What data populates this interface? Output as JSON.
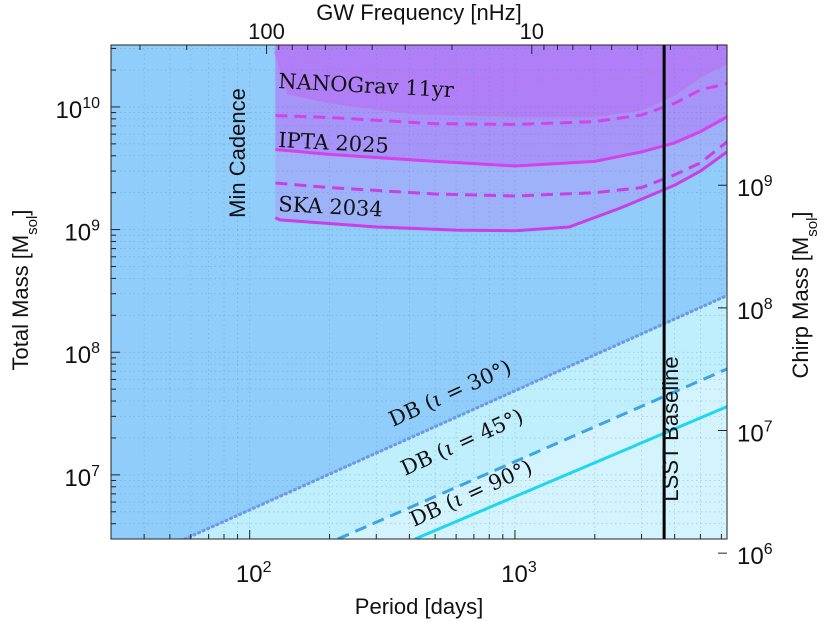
{
  "chart_data": {
    "type": "area",
    "title": "",
    "xlabel": "Period [days]",
    "ylabel": "Total Mass [M",
    "ylabel_sub": "sol",
    "ylabel_end": "]",
    "ylabel_right": "Chirp Mass [M",
    "ylabel_right_sub": "sol",
    "ylabel_right_end": "]",
    "xlabel_top": "GW Frequency [nHz]",
    "xscale": "log",
    "yscale": "log",
    "xlim": [
      30,
      6300
    ],
    "ylim": [
      3000000,
      32000000000
    ],
    "grid": true,
    "x_ticks": [
      {
        "value": 100,
        "base": "10",
        "exp": "2"
      },
      {
        "value": 1000,
        "base": "10",
        "exp": "3"
      }
    ],
    "y_ticks": [
      {
        "value": 10000000,
        "base": "10",
        "exp": "7"
      },
      {
        "value": 100000000,
        "base": "10",
        "exp": "8"
      },
      {
        "value": 1000000000,
        "base": "10",
        "exp": "9"
      },
      {
        "value": 10000000000,
        "base": "10",
        "exp": "10"
      }
    ],
    "top_ticks": [
      {
        "freq_nhz": 100,
        "label": "100"
      },
      {
        "freq_nhz": 10,
        "label": "10"
      }
    ],
    "right_ticks": [
      {
        "total_mass": 2300000,
        "base": "10",
        "exp": "6"
      },
      {
        "total_mass": 23000000,
        "base": "10",
        "exp": "7"
      },
      {
        "total_mass": 230000000,
        "base": "10",
        "exp": "8"
      },
      {
        "total_mass": 2300000000,
        "base": "10",
        "exp": "9"
      }
    ],
    "vertical_lines": [
      {
        "name": "min-cadence",
        "label": "Min Cadence",
        "x": 125
      },
      {
        "name": "lsst-baseline",
        "label": "LSST Baseline",
        "x": 3650
      }
    ],
    "pta_curves": [
      {
        "name": "NANOGrav 11yr",
        "label": "NANOGrav 11yr",
        "color": "#b47cf0",
        "solid": [
          [
            125,
            28500000000
          ],
          [
            140,
            13000000000
          ],
          [
            200,
            11000000000
          ],
          [
            400,
            9000000000
          ],
          [
            1000,
            8500000000
          ],
          [
            2000,
            8500000000
          ],
          [
            3000,
            9600000000
          ],
          [
            4000,
            12800000000
          ],
          [
            5000,
            17800000000
          ],
          [
            6300,
            23000000000
          ]
        ],
        "dashed": [
          [
            140,
            26000000000
          ],
          [
            200,
            21000000000
          ],
          [
            400,
            18000000000
          ],
          [
            1000,
            16500000000
          ],
          [
            2000,
            16800000000
          ],
          [
            3000,
            17500000000
          ],
          [
            4000,
            22000000000
          ],
          [
            5000,
            27500000000
          ],
          [
            6000,
            31000000000
          ]
        ]
      },
      {
        "name": "IPTA 2025",
        "label": "IPTA 2025",
        "color": "#d442ec",
        "solid": [
          [
            125,
            4500000000
          ],
          [
            200,
            4100000000
          ],
          [
            500,
            3600000000
          ],
          [
            1000,
            3300000000
          ],
          [
            2000,
            3600000000
          ],
          [
            3000,
            4300000000
          ],
          [
            4000,
            5100000000
          ],
          [
            5000,
            6300000000
          ],
          [
            6300,
            8300000000
          ]
        ],
        "dashed": [
          [
            125,
            8500000000
          ],
          [
            200,
            8200000000
          ],
          [
            500,
            7300000000
          ],
          [
            1000,
            7200000000
          ],
          [
            2000,
            7600000000
          ],
          [
            3000,
            8600000000
          ],
          [
            4000,
            10700000000
          ],
          [
            5000,
            13800000000
          ],
          [
            6300,
            15500000000
          ]
        ]
      },
      {
        "name": "SKA 2034",
        "label": "SKA 2034",
        "color": "#c83fe8",
        "solid": [
          [
            125,
            1250000000
          ],
          [
            130,
            1200000000
          ],
          [
            300,
            1050000000
          ],
          [
            600,
            990000000
          ],
          [
            1000,
            980000000
          ],
          [
            1600,
            1050000000
          ],
          [
            2500,
            1500000000
          ],
          [
            4000,
            2300000000
          ],
          [
            5000,
            3000000000
          ],
          [
            6300,
            4300000000
          ]
        ],
        "dashed": [
          [
            125,
            2400000000
          ],
          [
            200,
            2200000000
          ],
          [
            500,
            1950000000
          ],
          [
            1000,
            1880000000
          ],
          [
            2000,
            2000000000
          ],
          [
            3000,
            2200000000
          ],
          [
            4000,
            2800000000
          ],
          [
            5000,
            3500000000
          ],
          [
            6300,
            5200000000
          ]
        ]
      }
    ],
    "db_lines": [
      {
        "name": "db-30",
        "label_pre": "DB (",
        "label_iota": "ι",
        "label_eq": " = ",
        "label_deg": "30°",
        "label_post": ")",
        "style": "dotted",
        "color": "#6a9ae8",
        "start": [
          57,
          3000000
        ],
        "end": [
          6300,
          290000000
        ]
      },
      {
        "name": "db-45",
        "label_pre": "DB (",
        "label_iota": "ι",
        "label_eq": " = ",
        "label_deg": "45°",
        "label_post": ")",
        "style": "dashed",
        "color": "#3aa4e4",
        "start": [
          215,
          3000000
        ],
        "end": [
          6300,
          73000000
        ]
      },
      {
        "name": "db-90",
        "label_pre": "DB (",
        "label_iota": "ι",
        "label_eq": " = ",
        "label_deg": "90°",
        "label_post": ")",
        "style": "solid",
        "color": "#1fd6ee",
        "start": [
          420,
          3000000
        ],
        "end": [
          6300,
          36000000
        ]
      }
    ],
    "colors": {
      "background": "#91cdfb",
      "db_band_light": "#bfeefc",
      "db_band_lighter": "#d3f4fd",
      "pta_fill_ska": "#9eb2f9",
      "pta_fill_ipta": "#a694f8",
      "pta_fill_nano": "#b07ff7",
      "lsst_line": "#000000"
    }
  }
}
